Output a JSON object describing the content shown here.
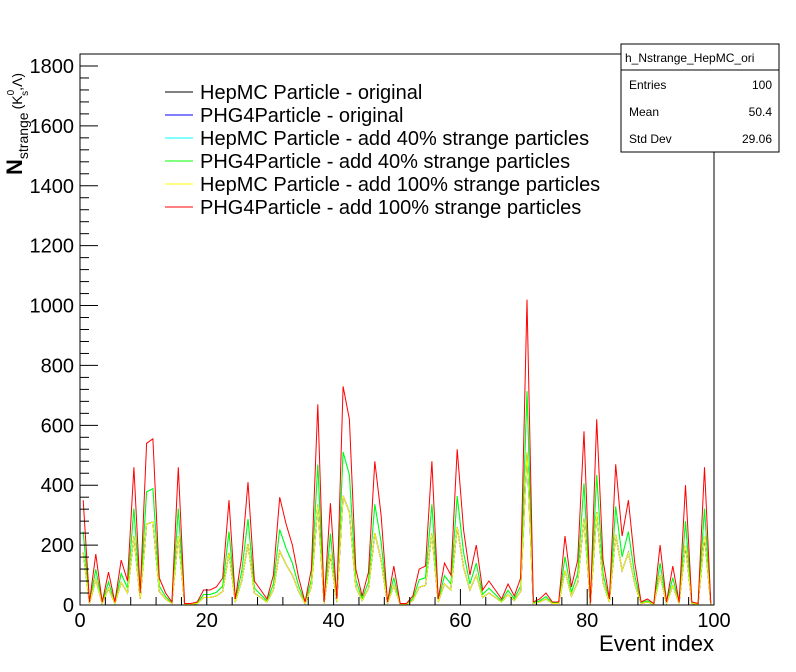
{
  "chart_data": {
    "type": "line",
    "ylabel": {
      "main": "N",
      "sub": "strange",
      "paren": "(K",
      "sup_k": "0",
      "sub_k": "s",
      "rest": ",Λ)"
    },
    "xlabel": "Event index",
    "xlim": [
      0,
      100
    ],
    "ylim": [
      0,
      1840
    ],
    "x_ticks": [
      0,
      20,
      40,
      60,
      80,
      100
    ],
    "y_ticks": [
      0,
      200,
      400,
      600,
      800,
      1000,
      1200,
      1400,
      1600,
      1800
    ],
    "x_tick_labels": [
      "0",
      "20",
      "40",
      "60",
      "80",
      "100"
    ],
    "y_tick_labels": [
      "0",
      "200",
      "400",
      "600",
      "800",
      "1000",
      "1200",
      "1400",
      "1600",
      "1800"
    ],
    "legend_position": "top-left",
    "scale_factors": [
      {
        "name": "HepMC Particle - original",
        "color": "#000000",
        "factor": 0.5
      },
      {
        "name": "PHG4Particle - original",
        "color": "#0000ff",
        "factor": 0.5
      },
      {
        "name": "HepMC Particle - add 40% strange particles",
        "color": "#00ffff",
        "factor": 0.7
      },
      {
        "name": "PHG4Particle - add 40% strange particles",
        "color": "#00ff00",
        "factor": 0.7
      },
      {
        "name": "HepMC Particle - add 100% strange particles",
        "color": "#ffff00",
        "factor": 0.5
      },
      {
        "name": "PHG4Particle - add 100% strange particles",
        "color": "#ff0000",
        "factor": 1.0
      }
    ],
    "series": [
      {
        "name": "HepMC Particle - original",
        "color": "#000000"
      },
      {
        "name": "PHG4Particle - original",
        "color": "#0000ff"
      },
      {
        "name": "HepMC Particle - add 40% strange particles",
        "color": "#00ffff"
      },
      {
        "name": "PHG4Particle - add 40% strange particles",
        "color": "#00ff00"
      },
      {
        "name": "HepMC Particle - add 100% strange particles",
        "color": "#ffff00"
      },
      {
        "name": "PHG4Particle - add 100% strange particles",
        "color": "#ff0000"
      }
    ],
    "x": [
      0,
      1,
      2,
      3,
      4,
      5,
      6,
      7,
      8,
      9,
      10,
      11,
      12,
      13,
      14,
      15,
      16,
      17,
      18,
      19,
      20,
      21,
      22,
      23,
      24,
      25,
      26,
      27,
      28,
      29,
      30,
      31,
      32,
      33,
      34,
      35,
      36,
      37,
      38,
      39,
      40,
      41,
      42,
      43,
      44,
      45,
      46,
      47,
      48,
      49,
      50,
      51,
      52,
      53,
      54,
      55,
      56,
      57,
      58,
      59,
      60,
      61,
      62,
      63,
      64,
      65,
      66,
      67,
      68,
      69,
      70,
      71,
      72,
      73,
      74,
      75,
      76,
      77,
      78,
      79,
      80,
      81,
      82,
      83,
      84,
      85,
      86,
      87,
      88,
      89,
      90,
      91,
      92,
      93,
      94,
      95,
      96,
      97,
      98,
      99
    ],
    "values_max": [
      350,
      10,
      170,
      10,
      110,
      10,
      150,
      80,
      460,
      40,
      540,
      555,
      90,
      40,
      10,
      460,
      5,
      5,
      10,
      50,
      50,
      60,
      90,
      350,
      20,
      160,
      410,
      80,
      50,
      20,
      100,
      360,
      270,
      200,
      90,
      10,
      120,
      670,
      10,
      340,
      20,
      730,
      620,
      120,
      30,
      110,
      480,
      300,
      10,
      130,
      5,
      5,
      30,
      120,
      130,
      480,
      20,
      140,
      100,
      520,
      250,
      100,
      200,
      50,
      80,
      50,
      20,
      70,
      30,
      90,
      1020,
      10,
      20,
      40,
      10,
      10,
      230,
      60,
      150,
      580,
      5,
      620,
      150,
      20,
      470,
      230,
      350,
      140,
      10,
      20,
      5,
      200,
      10,
      130,
      10,
      400,
      10,
      5,
      460,
      5
    ],
    "stats": {
      "title": "h_Nstrange_HepMC_ori",
      "rows": [
        {
          "label": "Entries",
          "value": "100"
        },
        {
          "label": "Mean",
          "value": "50.4"
        },
        {
          "label": "Std Dev",
          "value": "29.06"
        }
      ]
    }
  }
}
